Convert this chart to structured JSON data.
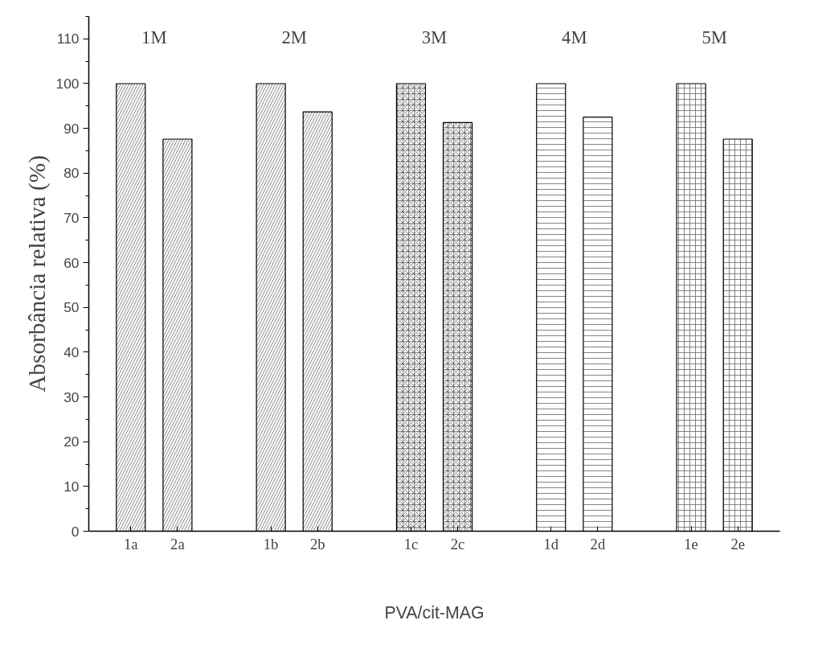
{
  "chart_data": {
    "type": "bar",
    "xlabel": "PVA/cit-MAG",
    "ylabel": "Absorbância relativa (%)",
    "categories": [
      "1a",
      "2a",
      null,
      "1b",
      "2b",
      null,
      "1c",
      "2c",
      null,
      "1d",
      "2d",
      null,
      "1e",
      "2e"
    ],
    "values": [
      100,
      87.6,
      null,
      100,
      93.7,
      null,
      100,
      91.3,
      null,
      100,
      92.5,
      null,
      100,
      87.6
    ],
    "color": "#ffffff",
    "annotations": [
      "1M",
      "2M",
      "3M",
      "4M",
      "5M"
    ],
    "ylim": [
      0,
      115
    ],
    "yticks": [
      0,
      10,
      20,
      30,
      40,
      50,
      60,
      70,
      80,
      90,
      100,
      110
    ],
    "grid": false
  }
}
